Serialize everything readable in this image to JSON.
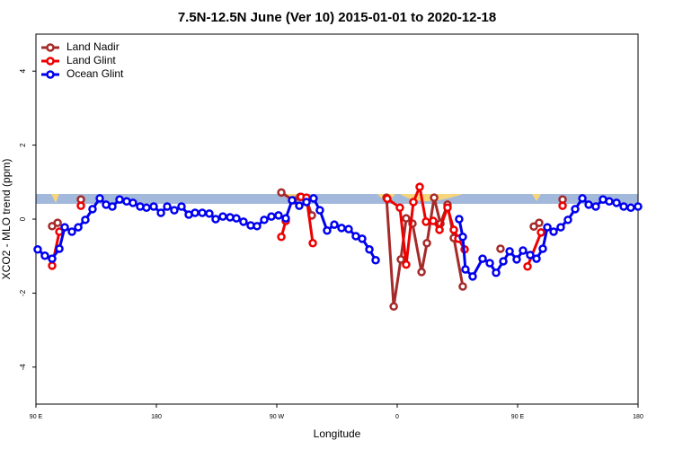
{
  "chart_data": {
    "type": "line",
    "title": "7.5N-12.5N June (Ver 10)   2015-01-01 to 2020-12-18",
    "x_label": "Longitude",
    "y_label": "XCO2 - MLO trend (ppm)",
    "xlim": [
      90,
      540
    ],
    "xticks": [
      {
        "value": 90,
        "label": "90 E"
      },
      {
        "value": 180,
        "label": "180"
      },
      {
        "value": 270,
        "label": "90 W"
      },
      {
        "value": 360,
        "label": "0"
      },
      {
        "value": 450,
        "label": "90 E"
      },
      {
        "value": 540,
        "label": "180"
      }
    ],
    "ylim": [
      -5,
      5
    ],
    "yticks": [
      -4,
      -2,
      0,
      2,
      4
    ],
    "legend": "top-left",
    "series": [
      {
        "name": "Land Nadir",
        "color": "#a52a2a",
        "x": [
          102.1,
          106.2,
          115,
          123.6,
          200,
          273.4,
          282.1,
          287.5,
          292.2,
          296.2,
          320,
          352.0,
          357.4,
          362.7,
          366.7,
          371.4,
          378.2,
          382.2,
          387.6,
          392.3,
          397.6,
          402.3,
          409.0,
          420,
          437.2,
          450,
          462.1,
          466.1,
          475,
          483.6
        ],
        "values": [
          -0.19,
          -0.1,
          null,
          0.53,
          null,
          0.72,
          0.51,
          0.6,
          0.53,
          0.1,
          null,
          0.58,
          -2.36,
          -1.09,
          0.02,
          -0.12,
          -1.43,
          -0.65,
          0.58,
          -0.12,
          0.39,
          -0.51,
          -1.82,
          null,
          -0.8,
          null,
          -0.2,
          -0.1,
          null,
          0.53
        ]
      },
      {
        "name": "Land Glint",
        "color": "#ee0000",
        "x": [
          102.1,
          107.5,
          115,
          123.6,
          200,
          273.4,
          276.7,
          282,
          288.1,
          292.2,
          296.9,
          320,
          352.6,
          362.0,
          366.7,
          372.1,
          376.8,
          381.5,
          386.9,
          391.6,
          397.6,
          402.3,
          405.7,
          410.4,
          430,
          457.4,
          467.5,
          475,
          483.6
        ],
        "values": [
          -1.26,
          -0.34,
          null,
          0.36,
          null,
          -0.48,
          -0.05,
          null,
          0.6,
          0.58,
          -0.65,
          null,
          0.55,
          0.31,
          -1.23,
          0.46,
          0.87,
          -0.07,
          -0.05,
          -0.29,
          0.31,
          -0.29,
          -0.53,
          -0.82,
          null,
          -1.28,
          -0.36,
          null,
          0.36
        ]
      },
      {
        "name": "Ocean Glint",
        "color": "#0000ee",
        "x": [
          91.3,
          96.7,
          102.1,
          107.5,
          111.5,
          116.9,
          121.6,
          126.9,
          132.3,
          137.7,
          142.4,
          147.1,
          152.5,
          157.8,
          162.5,
          167.9,
          172.6,
          178.0,
          183.4,
          188.1,
          193.4,
          198.8,
          204.2,
          208.9,
          214.3,
          219.6,
          224.3,
          229.7,
          235.1,
          239.8,
          245.1,
          250.5,
          255.2,
          260.6,
          266.0,
          271.3,
          276.7,
          281.4,
          286.8,
          292.2,
          297.5,
          302.2,
          307.6,
          313.0,
          318.4,
          323.7,
          329.1,
          333.8,
          339.2,
          343.9,
          375,
          406.3,
          409.0,
          411.0,
          416.4,
          423.8,
          429.2,
          433.9,
          439.3,
          444.0,
          449.3,
          454.0,
          459.4,
          464.1,
          468.8,
          472.2,
          476.9,
          482.2,
          487.6,
          493.0,
          498.4,
          503.1,
          508.4,
          513.8,
          518.5,
          523.9,
          529.3,
          534.6,
          540
        ],
        "values": [
          -0.82,
          -0.99,
          -1.07,
          -0.8,
          -0.22,
          -0.34,
          -0.22,
          -0.02,
          0.27,
          0.56,
          0.39,
          0.34,
          0.53,
          0.48,
          0.44,
          0.34,
          0.31,
          0.34,
          0.17,
          0.34,
          0.24,
          0.34,
          0.12,
          0.17,
          0.17,
          0.15,
          0,
          0.07,
          0.05,
          0.02,
          -0.07,
          -0.17,
          -0.19,
          -0.02,
          0.07,
          0.1,
          0.02,
          0.51,
          0.36,
          0.46,
          0.56,
          0.24,
          -0.31,
          -0.15,
          -0.24,
          -0.27,
          -0.46,
          -0.53,
          -0.82,
          -1.11,
          null,
          0,
          -0.48,
          -1.36,
          -1.55,
          -1.07,
          -1.19,
          -1.45,
          -1.14,
          -0.87,
          -1.09,
          -0.85,
          -0.97,
          -1.07,
          -0.8,
          -0.22,
          -0.34,
          -0.22,
          -0.02,
          0.27,
          0.56,
          0.39,
          0.34,
          0.53,
          0.48,
          0.44,
          0.34,
          0.31,
          0.34
        ]
      }
    ]
  }
}
